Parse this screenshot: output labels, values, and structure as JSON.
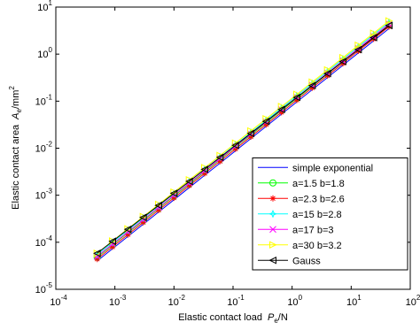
{
  "chart_data": {
    "type": "line",
    "xscale": "log",
    "yscale": "log",
    "xlabel": {
      "text": "Elastic contact load",
      "var": "P",
      "sub": "e",
      "unit": "/N"
    },
    "ylabel": {
      "text": "Elastic contact area",
      "var": "A",
      "sub": "e",
      "unit": "/mm",
      "sup": "2"
    },
    "xlim": [
      0.0001,
      100
    ],
    "ylim": [
      1e-05,
      10
    ],
    "xticks": [
      {
        "value": 0.0001,
        "label": "10",
        "exponent": "-4"
      },
      {
        "value": 0.001,
        "label": "10",
        "exponent": "-3"
      },
      {
        "value": 0.01,
        "label": "10",
        "exponent": "-2"
      },
      {
        "value": 0.1,
        "label": "10",
        "exponent": "-1"
      },
      {
        "value": 1,
        "label": "10",
        "exponent": "0"
      },
      {
        "value": 10,
        "label": "10",
        "exponent": "1"
      },
      {
        "value": 100,
        "label": "10",
        "exponent": "2"
      }
    ],
    "yticks": [
      {
        "value": 1e-05,
        "label": "10",
        "exponent": "-5"
      },
      {
        "value": 0.0001,
        "label": "10",
        "exponent": "-4"
      },
      {
        "value": 0.001,
        "label": "10",
        "exponent": "-3"
      },
      {
        "value": 0.01,
        "label": "10",
        "exponent": "-2"
      },
      {
        "value": 0.1,
        "label": "10",
        "exponent": "-1"
      },
      {
        "value": 1,
        "label": "10",
        "exponent": "0"
      },
      {
        "value": 10,
        "label": "10",
        "exponent": "1"
      }
    ],
    "legend": "lower right",
    "x": [
      0.000501,
      0.000912,
      0.00166,
      0.00302,
      0.0055,
      0.01,
      0.0182,
      0.0331,
      0.0603,
      0.11,
      0.2,
      0.363,
      0.661,
      1.2,
      2.19,
      3.98,
      7.24,
      13.2,
      24.0,
      43.7
    ],
    "series": [
      {
        "name": "simple exponential",
        "color": "#0000ff",
        "marker": "none",
        "values": [
          4.01e-05,
          7.3e-05,
          0.000133,
          0.000242,
          0.00044,
          0.0008,
          0.00146,
          0.00265,
          0.00482,
          0.0088,
          0.016,
          0.029,
          0.0529,
          0.096,
          0.175,
          0.318,
          0.579,
          1.06,
          1.92,
          3.5
        ]
      },
      {
        "name": "a=1.5 b=1.8",
        "color": "#00ff00",
        "marker": "circle",
        "values": [
          4.81e-05,
          8.76e-05,
          0.00016,
          0.00029,
          0.000528,
          0.00096,
          0.00175,
          0.00318,
          0.00578,
          0.0106,
          0.0192,
          0.0348,
          0.0635,
          0.115,
          0.21,
          0.382,
          0.695,
          1.27,
          2.3,
          4.2
        ]
      },
      {
        "name": "a=2.3 b=2.6",
        "color": "#ff0000",
        "marker": "asterisk",
        "values": [
          4.41e-05,
          8.03e-05,
          0.000146,
          0.000266,
          0.000484,
          0.00088,
          0.00161,
          0.00292,
          0.0053,
          0.00968,
          0.0176,
          0.0319,
          0.0582,
          0.106,
          0.193,
          0.35,
          0.637,
          1.17,
          2.11,
          3.85
        ]
      },
      {
        "name": "a=15 b=2.8",
        "color": "#00ffff",
        "marker": "star",
        "values": [
          5.41e-05,
          9.86e-05,
          0.00018,
          0.000327,
          0.000594,
          0.00108,
          0.00197,
          0.00358,
          0.00651,
          0.0119,
          0.0216,
          0.0392,
          0.0714,
          0.13,
          0.236,
          0.429,
          0.782,
          1.43,
          2.59,
          4.73
        ]
      },
      {
        "name": "a=17 b=3",
        "color": "#ff00ff",
        "marker": "x",
        "values": [
          5.01e-05,
          9.13e-05,
          0.000166,
          0.000303,
          0.00055,
          0.001,
          0.00183,
          0.00331,
          0.00603,
          0.011,
          0.02,
          0.0363,
          0.0661,
          0.12,
          0.219,
          0.398,
          0.724,
          1.33,
          2.4,
          4.38
        ]
      },
      {
        "name": "a=30 b=3.2",
        "color": "#ffff00",
        "marker": "triangle-right",
        "values": [
          5.81e-05,
          0.000106,
          0.000193,
          0.000351,
          0.000638,
          0.00116,
          0.00212,
          0.00384,
          0.00699,
          0.0128,
          0.0232,
          0.0421,
          0.0767,
          0.139,
          0.254,
          0.461,
          0.84,
          1.54,
          2.78,
          5.08
        ]
      },
      {
        "name": "Gauss",
        "color": "#000000",
        "marker": "triangle-left",
        "values": [
          5.83e-05,
          0.000105,
          0.000189,
          0.000339,
          0.00061,
          0.0011,
          0.00197,
          0.00355,
          0.00637,
          0.0115,
          0.0206,
          0.0371,
          0.0667,
          0.12,
          0.215,
          0.387,
          0.697,
          1.25,
          2.25,
          4.05
        ]
      }
    ]
  }
}
